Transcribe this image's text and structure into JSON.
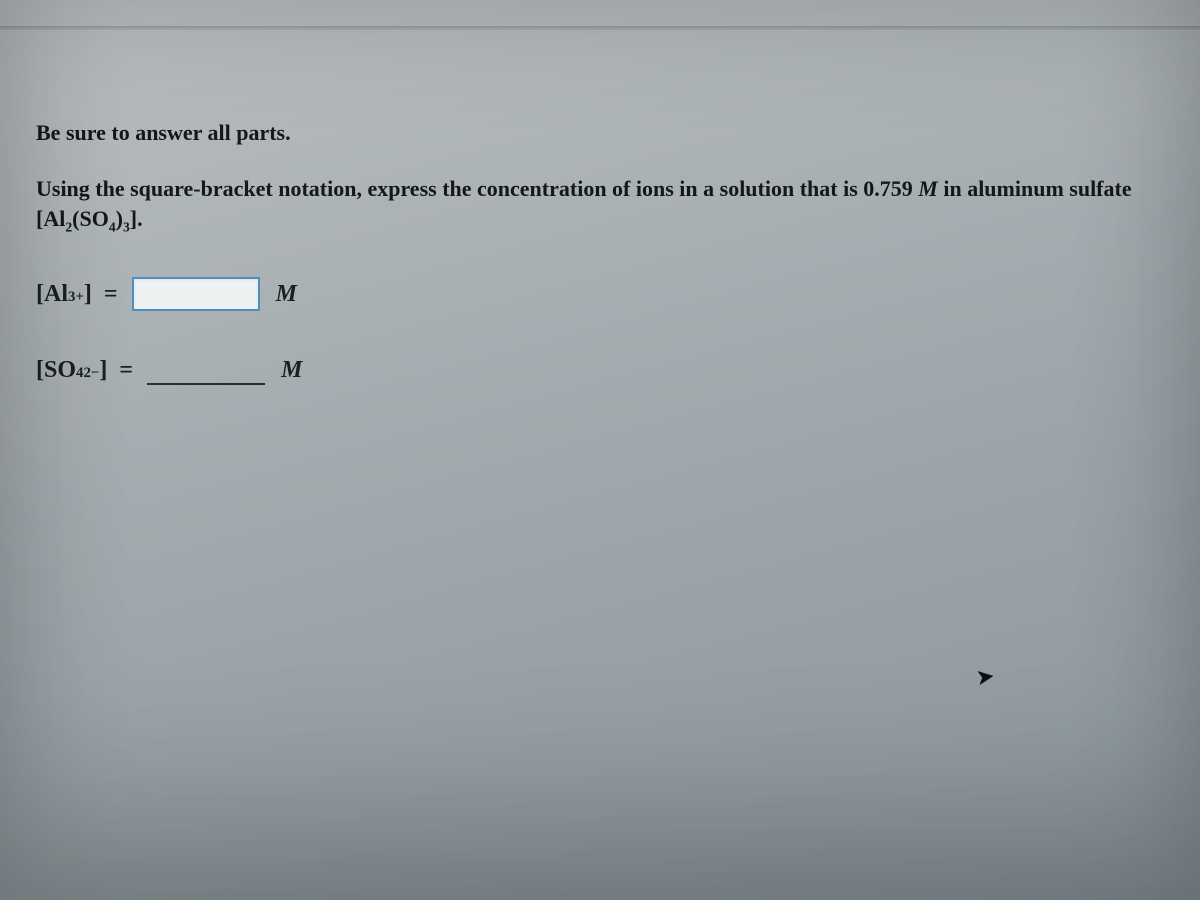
{
  "colors": {
    "text": "#14181a",
    "input_border_active": "#4f8fbf",
    "input_bg_active": "#eef1f2",
    "underline": "#2a2e30"
  },
  "instruction": "Be sure to answer all parts.",
  "question": {
    "lead": "Using the square-bracket notation, express the concentration of ions in a solution that is ",
    "conc_value": "0.759",
    "conc_unit": "M",
    "tail_1": " in aluminum sulfate [Al",
    "sub1": "2",
    "mid": "(SO",
    "sub2": "4",
    "close": ")",
    "sub3": "3",
    "end": "]."
  },
  "rows": [
    {
      "species_open": "[Al",
      "species_super": "3+",
      "species_close": "] ",
      "equals": "=",
      "value": "",
      "unit": "M",
      "style": "boxed"
    },
    {
      "species_open": "[SO",
      "species_sub": "4",
      "species_super": "2−",
      "species_close": "] ",
      "equals": "=",
      "value": "",
      "unit": "M",
      "style": "underline"
    }
  ],
  "cursor_glyph": "➤"
}
